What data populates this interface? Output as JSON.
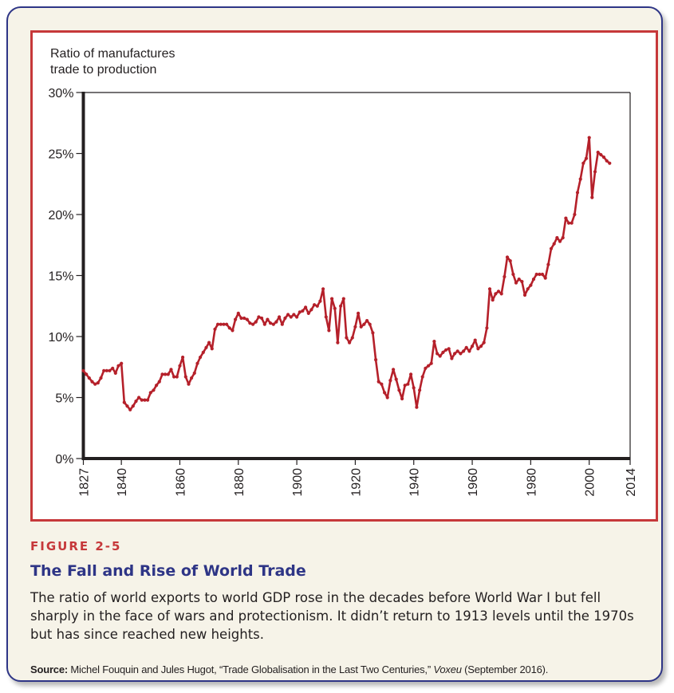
{
  "figure": {
    "label": "FIGURE 2-5",
    "title": "The Fall and Rise of World Trade",
    "caption": "The ratio of world exports to world GDP rose in the decades before World War I but fell sharply in the face of wars and protectionism. It didn’t return to 1913 levels until the 1970s but has since reached new heights.",
    "source_label": "Source:",
    "source_text_1": " Michel Fouquin and Jules Hugot, “Trade Globalisation in the Last Two Centuries,” ",
    "source_publication": "Voxeu",
    "source_text_2": " (September 2016).",
    "colors": {
      "frame_border": "#2e3586",
      "frame_background": "#f6f3e8",
      "chart_border": "#c6383a",
      "line": "#b5202a",
      "label_red": "#c6383a",
      "title_navy": "#2e3586"
    }
  },
  "chart_data": {
    "type": "line",
    "title": "",
    "ylabel_lines": [
      "Ratio of manufactures",
      "trade to production"
    ],
    "xlabel": "",
    "xlim": [
      1827,
      2014
    ],
    "ylim": [
      0,
      30
    ],
    "y_ticks": [
      0,
      5,
      10,
      15,
      20,
      25,
      30
    ],
    "y_tick_labels": [
      "0%",
      "5%",
      "10%",
      "15%",
      "20%",
      "25%",
      "30%"
    ],
    "x_ticks": [
      1827,
      1840,
      1860,
      1880,
      1900,
      1920,
      1940,
      1960,
      1980,
      2000,
      2014
    ],
    "x_tick_labels": [
      "1827",
      "1840",
      "1860",
      "1880",
      "1900",
      "1920",
      "1940",
      "1960",
      "1980",
      "2000",
      "2014"
    ],
    "grid": false,
    "legend": "none",
    "series": [
      {
        "name": "Ratio of manufactures trade to production",
        "markers": true,
        "points": [
          [
            1827,
            7.2
          ],
          [
            1828,
            6.9
          ],
          [
            1829,
            6.6
          ],
          [
            1830,
            6.3
          ],
          [
            1831,
            6.1
          ],
          [
            1832,
            6.2
          ],
          [
            1833,
            6.6
          ],
          [
            1834,
            7.2
          ],
          [
            1835,
            7.2
          ],
          [
            1836,
            7.2
          ],
          [
            1837,
            7.4
          ],
          [
            1838,
            7.0
          ],
          [
            1839,
            7.6
          ],
          [
            1840,
            7.8
          ],
          [
            1841,
            4.6
          ],
          [
            1842,
            4.3
          ],
          [
            1843,
            4.0
          ],
          [
            1844,
            4.3
          ],
          [
            1845,
            4.7
          ],
          [
            1846,
            5.0
          ],
          [
            1847,
            4.8
          ],
          [
            1848,
            4.8
          ],
          [
            1849,
            4.8
          ],
          [
            1850,
            5.4
          ],
          [
            1851,
            5.6
          ],
          [
            1852,
            6.0
          ],
          [
            1853,
            6.3
          ],
          [
            1854,
            6.9
          ],
          [
            1855,
            6.9
          ],
          [
            1856,
            6.9
          ],
          [
            1857,
            7.3
          ],
          [
            1858,
            6.7
          ],
          [
            1859,
            6.7
          ],
          [
            1860,
            7.6
          ],
          [
            1861,
            8.3
          ],
          [
            1862,
            6.7
          ],
          [
            1863,
            6.1
          ],
          [
            1864,
            6.6
          ],
          [
            1865,
            7.0
          ],
          [
            1866,
            7.8
          ],
          [
            1867,
            8.3
          ],
          [
            1868,
            8.7
          ],
          [
            1869,
            9.1
          ],
          [
            1870,
            9.5
          ],
          [
            1871,
            9.0
          ],
          [
            1872,
            10.6
          ],
          [
            1873,
            11.0
          ],
          [
            1874,
            11.0
          ],
          [
            1875,
            11.0
          ],
          [
            1876,
            11.0
          ],
          [
            1877,
            10.7
          ],
          [
            1878,
            10.5
          ],
          [
            1879,
            11.4
          ],
          [
            1880,
            11.9
          ],
          [
            1881,
            11.5
          ],
          [
            1882,
            11.5
          ],
          [
            1883,
            11.4
          ],
          [
            1884,
            11.1
          ],
          [
            1885,
            11.0
          ],
          [
            1886,
            11.2
          ],
          [
            1887,
            11.6
          ],
          [
            1888,
            11.5
          ],
          [
            1889,
            11.0
          ],
          [
            1890,
            11.4
          ],
          [
            1891,
            11.1
          ],
          [
            1892,
            11.0
          ],
          [
            1893,
            11.2
          ],
          [
            1894,
            11.6
          ],
          [
            1895,
            11.0
          ],
          [
            1896,
            11.5
          ],
          [
            1897,
            11.8
          ],
          [
            1898,
            11.6
          ],
          [
            1899,
            11.8
          ],
          [
            1900,
            11.6
          ],
          [
            1901,
            12.0
          ],
          [
            1902,
            12.1
          ],
          [
            1903,
            12.4
          ],
          [
            1904,
            11.9
          ],
          [
            1905,
            12.2
          ],
          [
            1906,
            12.6
          ],
          [
            1907,
            12.5
          ],
          [
            1908,
            12.9
          ],
          [
            1909,
            13.9
          ],
          [
            1910,
            11.6
          ],
          [
            1911,
            10.5
          ],
          [
            1912,
            13.1
          ],
          [
            1913,
            12.3
          ],
          [
            1914,
            9.5
          ],
          [
            1915,
            12.5
          ],
          [
            1916,
            13.1
          ],
          [
            1917,
            9.9
          ],
          [
            1918,
            9.5
          ],
          [
            1919,
            9.9
          ],
          [
            1920,
            10.8
          ],
          [
            1921,
            11.9
          ],
          [
            1922,
            10.8
          ],
          [
            1923,
            11.0
          ],
          [
            1924,
            11.3
          ],
          [
            1925,
            11.0
          ],
          [
            1926,
            10.3
          ],
          [
            1927,
            8.1
          ],
          [
            1928,
            6.3
          ],
          [
            1929,
            6.1
          ],
          [
            1930,
            5.4
          ],
          [
            1931,
            5.0
          ],
          [
            1932,
            6.4
          ],
          [
            1933,
            7.3
          ],
          [
            1934,
            6.5
          ],
          [
            1935,
            5.6
          ],
          [
            1936,
            4.9
          ],
          [
            1937,
            6.0
          ],
          [
            1938,
            6.1
          ],
          [
            1939,
            6.9
          ],
          [
            1940,
            5.8
          ],
          [
            1941,
            4.2
          ],
          [
            1942,
            5.6
          ],
          [
            1943,
            6.7
          ],
          [
            1944,
            7.4
          ],
          [
            1945,
            7.6
          ],
          [
            1946,
            7.8
          ],
          [
            1947,
            9.6
          ],
          [
            1948,
            8.6
          ],
          [
            1949,
            8.4
          ],
          [
            1950,
            8.7
          ],
          [
            1951,
            8.9
          ],
          [
            1952,
            9.0
          ],
          [
            1953,
            8.2
          ],
          [
            1954,
            8.6
          ],
          [
            1955,
            8.8
          ],
          [
            1956,
            8.6
          ],
          [
            1957,
            8.8
          ],
          [
            1958,
            9.1
          ],
          [
            1959,
            8.8
          ],
          [
            1960,
            9.2
          ],
          [
            1961,
            9.7
          ],
          [
            1962,
            9.0
          ],
          [
            1963,
            9.2
          ],
          [
            1964,
            9.5
          ],
          [
            1965,
            10.7
          ],
          [
            1966,
            13.9
          ],
          [
            1967,
            13.0
          ],
          [
            1968,
            13.5
          ],
          [
            1969,
            13.7
          ],
          [
            1970,
            13.5
          ],
          [
            1971,
            14.9
          ],
          [
            1972,
            16.5
          ],
          [
            1973,
            16.2
          ],
          [
            1974,
            15.1
          ],
          [
            1975,
            14.4
          ],
          [
            1976,
            14.7
          ],
          [
            1977,
            14.5
          ],
          [
            1978,
            13.4
          ],
          [
            1979,
            13.9
          ],
          [
            1980,
            14.2
          ],
          [
            1981,
            14.7
          ],
          [
            1982,
            15.1
          ],
          [
            1983,
            15.1
          ],
          [
            1984,
            15.1
          ],
          [
            1985,
            14.8
          ],
          [
            1986,
            15.9
          ],
          [
            1987,
            17.2
          ],
          [
            1988,
            17.6
          ],
          [
            1989,
            18.1
          ],
          [
            1990,
            17.8
          ],
          [
            1991,
            18.1
          ],
          [
            1992,
            19.7
          ],
          [
            1993,
            19.3
          ],
          [
            1994,
            19.3
          ],
          [
            1995,
            20.0
          ],
          [
            1996,
            21.8
          ],
          [
            1997,
            22.9
          ],
          [
            1998,
            24.2
          ],
          [
            1999,
            24.6
          ],
          [
            2000,
            26.3
          ],
          [
            2001,
            21.4
          ],
          [
            2002,
            23.5
          ],
          [
            2003,
            25.1
          ],
          [
            2004,
            24.9
          ],
          [
            2005,
            24.7
          ],
          [
            2006,
            24.4
          ],
          [
            2007,
            24.2
          ]
        ]
      }
    ]
  }
}
